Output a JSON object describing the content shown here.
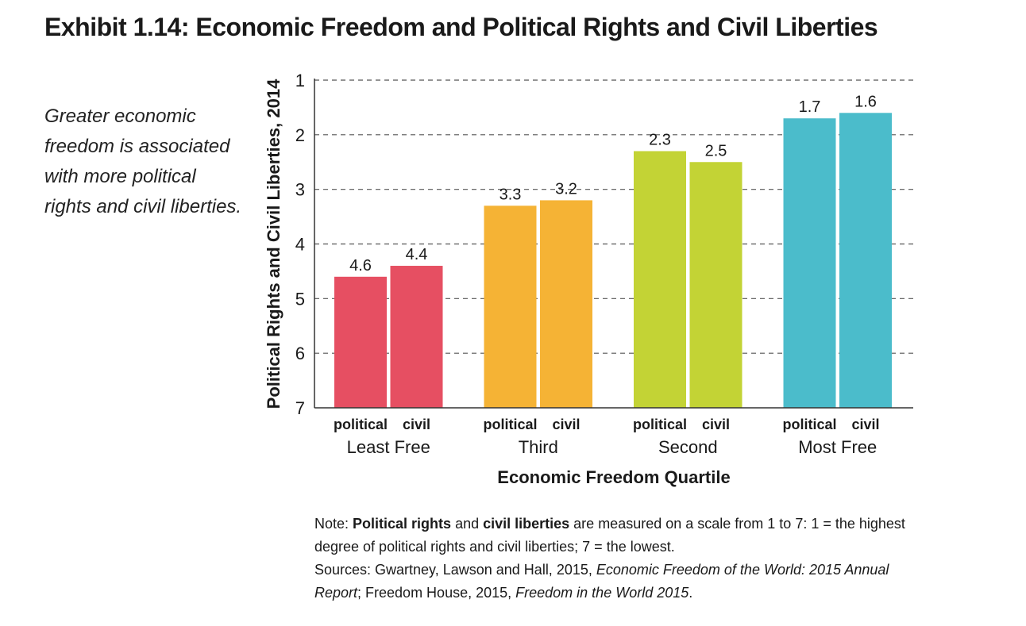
{
  "page": {
    "title": "Exhibit 1.14: Economic Freedom and Political Rights and Civil Liberties",
    "caption": "Greater economic freedom is associated with more political rights and civil liberties."
  },
  "chart_data": {
    "type": "bar",
    "xlabel": "Economic Freedom Quartile",
    "ylabel": "Political Rights and Civil Liberties, 2014",
    "ylim": [
      1,
      7
    ],
    "y_inverted": true,
    "y_ticks": [
      1,
      2,
      3,
      4,
      5,
      6,
      7
    ],
    "grid": "horizontal dashed",
    "groups": [
      {
        "label": "Least Free",
        "color": "#E64F62",
        "bars": [
          {
            "label": "political",
            "value": 4.6,
            "text": "4.6"
          },
          {
            "label": "civil",
            "value": 4.4,
            "text": "4.4"
          }
        ]
      },
      {
        "label": "Third",
        "color": "#F5B335",
        "bars": [
          {
            "label": "political",
            "value": 3.3,
            "text": "3.3"
          },
          {
            "label": "civil",
            "value": 3.2,
            "text": "3.2"
          }
        ]
      },
      {
        "label": "Second",
        "color": "#C3D335",
        "bars": [
          {
            "label": "political",
            "value": 2.3,
            "text": "2.3"
          },
          {
            "label": "civil",
            "value": 2.5,
            "text": "2.5"
          }
        ]
      },
      {
        "label": "Most Free",
        "color": "#4BBCCB",
        "bars": [
          {
            "label": "political",
            "value": 1.7,
            "text": "1.7"
          },
          {
            "label": "civil",
            "value": 1.6,
            "text": "1.6"
          }
        ]
      }
    ]
  },
  "note": {
    "prefix": "Note: ",
    "term1": "Political rights",
    "and": " and ",
    "term2": "civil liberties",
    "rest": " are measured on a scale from 1 to 7: 1 = the highest degree of political rights and civil liberties; 7 = the lowest."
  },
  "sources": {
    "prefix": "Sources: Gwartney, Lawson and Hall, 2015, ",
    "work1": "Economic Freedom of the World: 2015 Annual Report",
    "middle": "; Freedom House, 2015, ",
    "work2": "Freedom in the World 2015",
    "end": "."
  }
}
